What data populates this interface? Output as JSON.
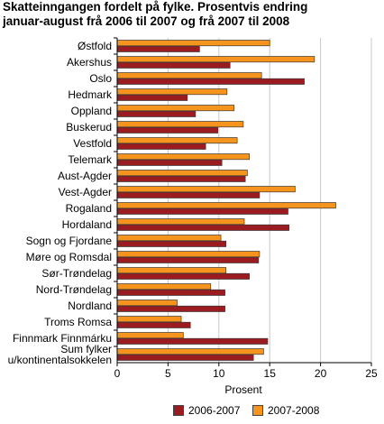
{
  "chart_data": {
    "type": "bar",
    "orientation": "horizontal",
    "title": "Skatteinngangen fordelt på fylke. Prosentvis endring",
    "subtitle": "januar-august frå 2006 til 2007 og frå 2007 til 2008",
    "xlabel": "Prosent",
    "ylabel": "",
    "xlim": [
      0,
      25
    ],
    "xticks": [
      "0",
      "5",
      "10",
      "15",
      "20",
      "25"
    ],
    "grid": "vertical",
    "legend_position": "bottom",
    "categories": [
      "Østfold",
      "Akershus",
      "Oslo",
      "Hedmark",
      "Oppland",
      "Buskerud",
      "Vestfold",
      "Telemark",
      "Aust-Agder",
      "Vest-Agder",
      "Rogaland",
      "Hordaland",
      "Sogn og Fjordane",
      "Møre og Romsdal",
      "Sør-Trøndelag",
      "Nord-Trøndelag",
      "Nordland",
      "Troms Romsa",
      "Finnmark Finnmárku",
      "Sum fylker u/kontinentalsokkelen"
    ],
    "series": [
      {
        "name": "2006-2007",
        "color": "#9b1c20",
        "values": [
          8.1,
          11.1,
          18.4,
          6.9,
          7.7,
          9.9,
          8.7,
          10.3,
          12.6,
          14.0,
          16.8,
          16.9,
          10.7,
          13.9,
          13.0,
          10.6,
          10.6,
          7.2,
          14.8,
          13.4
        ]
      },
      {
        "name": "2007-2008",
        "color": "#f7941d",
        "values": [
          15.0,
          19.4,
          14.2,
          10.8,
          11.5,
          12.4,
          11.8,
          13.0,
          12.8,
          17.5,
          21.5,
          12.5,
          10.2,
          14.0,
          10.7,
          9.2,
          5.9,
          6.3,
          6.5,
          14.4
        ]
      }
    ]
  }
}
